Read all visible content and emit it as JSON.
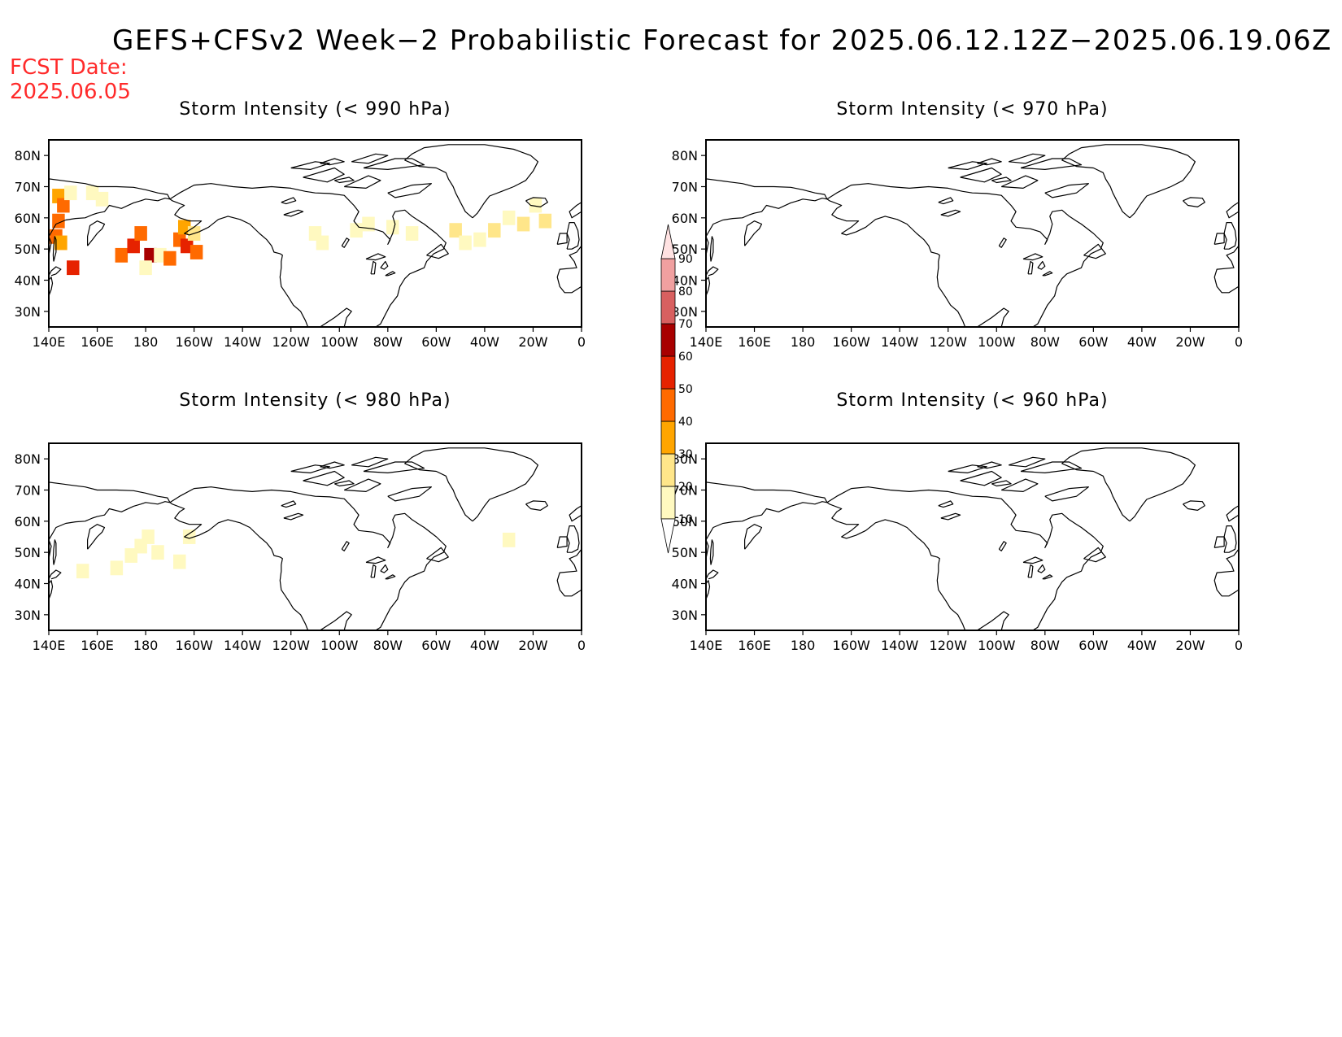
{
  "title": "GEFS+CFSv2 Week−2 Probabilistic Forecast for 2025.06.12.12Z−2025.06.19.06Z",
  "fcst_date": {
    "label": "FCST Date:",
    "value": "2025.06.05"
  },
  "lon_ticks": [
    "140E",
    "160E",
    "180",
    "160W",
    "140W",
    "120W",
    "100W",
    "80W",
    "60W",
    "40W",
    "20W",
    "0"
  ],
  "lat_ticks": [
    "80N",
    "70N",
    "60N",
    "50N",
    "40N",
    "30N"
  ],
  "colorbar": {
    "levels": [
      "10",
      "20",
      "30",
      "40",
      "50",
      "60",
      "70",
      "80",
      "90"
    ],
    "colors": [
      "#fff9c0",
      "#ffe68a",
      "#ffa500",
      "#ff6a00",
      "#e62200",
      "#a80000",
      "#d86060",
      "#f0a0a0",
      "#ffe2e2"
    ]
  },
  "panels": [
    {
      "title": "Storm Intensity (< 990 hPa)",
      "position": "top-left"
    },
    {
      "title": "Storm Intensity (< 970 hPa)",
      "position": "top-right"
    },
    {
      "title": "Storm Intensity (< 980 hPa)",
      "position": "bottom-left"
    },
    {
      "title": "Storm Intensity (< 960 hPa)",
      "position": "bottom-right"
    }
  ],
  "chart_data": [
    {
      "type": "heatmap",
      "panel": "Storm Intensity (< 990 hPa)",
      "units": "probability %",
      "xlim": [
        140,
        360
      ],
      "ylim": [
        25,
        85
      ],
      "cells": [
        {
          "lon": 144,
          "lat": 67,
          "value": 35
        },
        {
          "lon": 146,
          "lat": 64,
          "value": 40
        },
        {
          "lon": 144,
          "lat": 59,
          "value": 45
        },
        {
          "lon": 143,
          "lat": 54,
          "value": 40
        },
        {
          "lon": 145,
          "lat": 52,
          "value": 38
        },
        {
          "lon": 149,
          "lat": 68,
          "value": 18
        },
        {
          "lon": 150,
          "lat": 44,
          "value": 55
        },
        {
          "lon": 158,
          "lat": 68,
          "value": 15
        },
        {
          "lon": 162,
          "lat": 66,
          "value": 12
        },
        {
          "lon": 170,
          "lat": 48,
          "value": 45
        },
        {
          "lon": 175,
          "lat": 51,
          "value": 55
        },
        {
          "lon": 178,
          "lat": 55,
          "value": 45
        },
        {
          "lon": 182,
          "lat": 48,
          "value": 60
        },
        {
          "lon": 180,
          "lat": 44,
          "value": 15
        },
        {
          "lon": 186,
          "lat": 48,
          "value": 18
        },
        {
          "lon": 190,
          "lat": 47,
          "value": 45
        },
        {
          "lon": 194,
          "lat": 53,
          "value": 40
        },
        {
          "lon": 196,
          "lat": 57,
          "value": 30
        },
        {
          "lon": 197,
          "lat": 51,
          "value": 55
        },
        {
          "lon": 200,
          "lat": 55,
          "value": 25
        },
        {
          "lon": 201,
          "lat": 49,
          "value": 45
        },
        {
          "lon": 250,
          "lat": 55,
          "value": 15
        },
        {
          "lon": 253,
          "lat": 52,
          "value": 12
        },
        {
          "lon": 267,
          "lat": 56,
          "value": 12
        },
        {
          "lon": 272,
          "lat": 58,
          "value": 12
        },
        {
          "lon": 282,
          "lat": 57,
          "value": 15
        },
        {
          "lon": 290,
          "lat": 55,
          "value": 12
        },
        {
          "lon": 308,
          "lat": 56,
          "value": 20
        },
        {
          "lon": 312,
          "lat": 52,
          "value": 15
        },
        {
          "lon": 318,
          "lat": 53,
          "value": 18
        },
        {
          "lon": 324,
          "lat": 56,
          "value": 20
        },
        {
          "lon": 330,
          "lat": 60,
          "value": 18
        },
        {
          "lon": 336,
          "lat": 58,
          "value": 20
        },
        {
          "lon": 341,
          "lat": 64,
          "value": 15
        },
        {
          "lon": 345,
          "lat": 59,
          "value": 25
        }
      ]
    },
    {
      "type": "heatmap",
      "panel": "Storm Intensity (< 970 hPa)",
      "units": "probability %",
      "xlim": [
        140,
        360
      ],
      "ylim": [
        25,
        85
      ],
      "cells": []
    },
    {
      "type": "heatmap",
      "panel": "Storm Intensity (< 980 hPa)",
      "units": "probability %",
      "xlim": [
        140,
        360
      ],
      "ylim": [
        25,
        85
      ],
      "cells": [
        {
          "lon": 174,
          "lat": 49,
          "value": 12
        },
        {
          "lon": 178,
          "lat": 52,
          "value": 15
        },
        {
          "lon": 181,
          "lat": 55,
          "value": 14
        },
        {
          "lon": 185,
          "lat": 50,
          "value": 12
        },
        {
          "lon": 168,
          "lat": 45,
          "value": 11
        },
        {
          "lon": 154,
          "lat": 44,
          "value": 11
        },
        {
          "lon": 194,
          "lat": 47,
          "value": 11
        },
        {
          "lon": 198,
          "lat": 55,
          "value": 11
        },
        {
          "lon": 330,
          "lat": 54,
          "value": 11
        }
      ]
    },
    {
      "type": "heatmap",
      "panel": "Storm Intensity (< 960 hPa)",
      "units": "probability %",
      "xlim": [
        140,
        360
      ],
      "ylim": [
        25,
        85
      ],
      "cells": []
    }
  ]
}
